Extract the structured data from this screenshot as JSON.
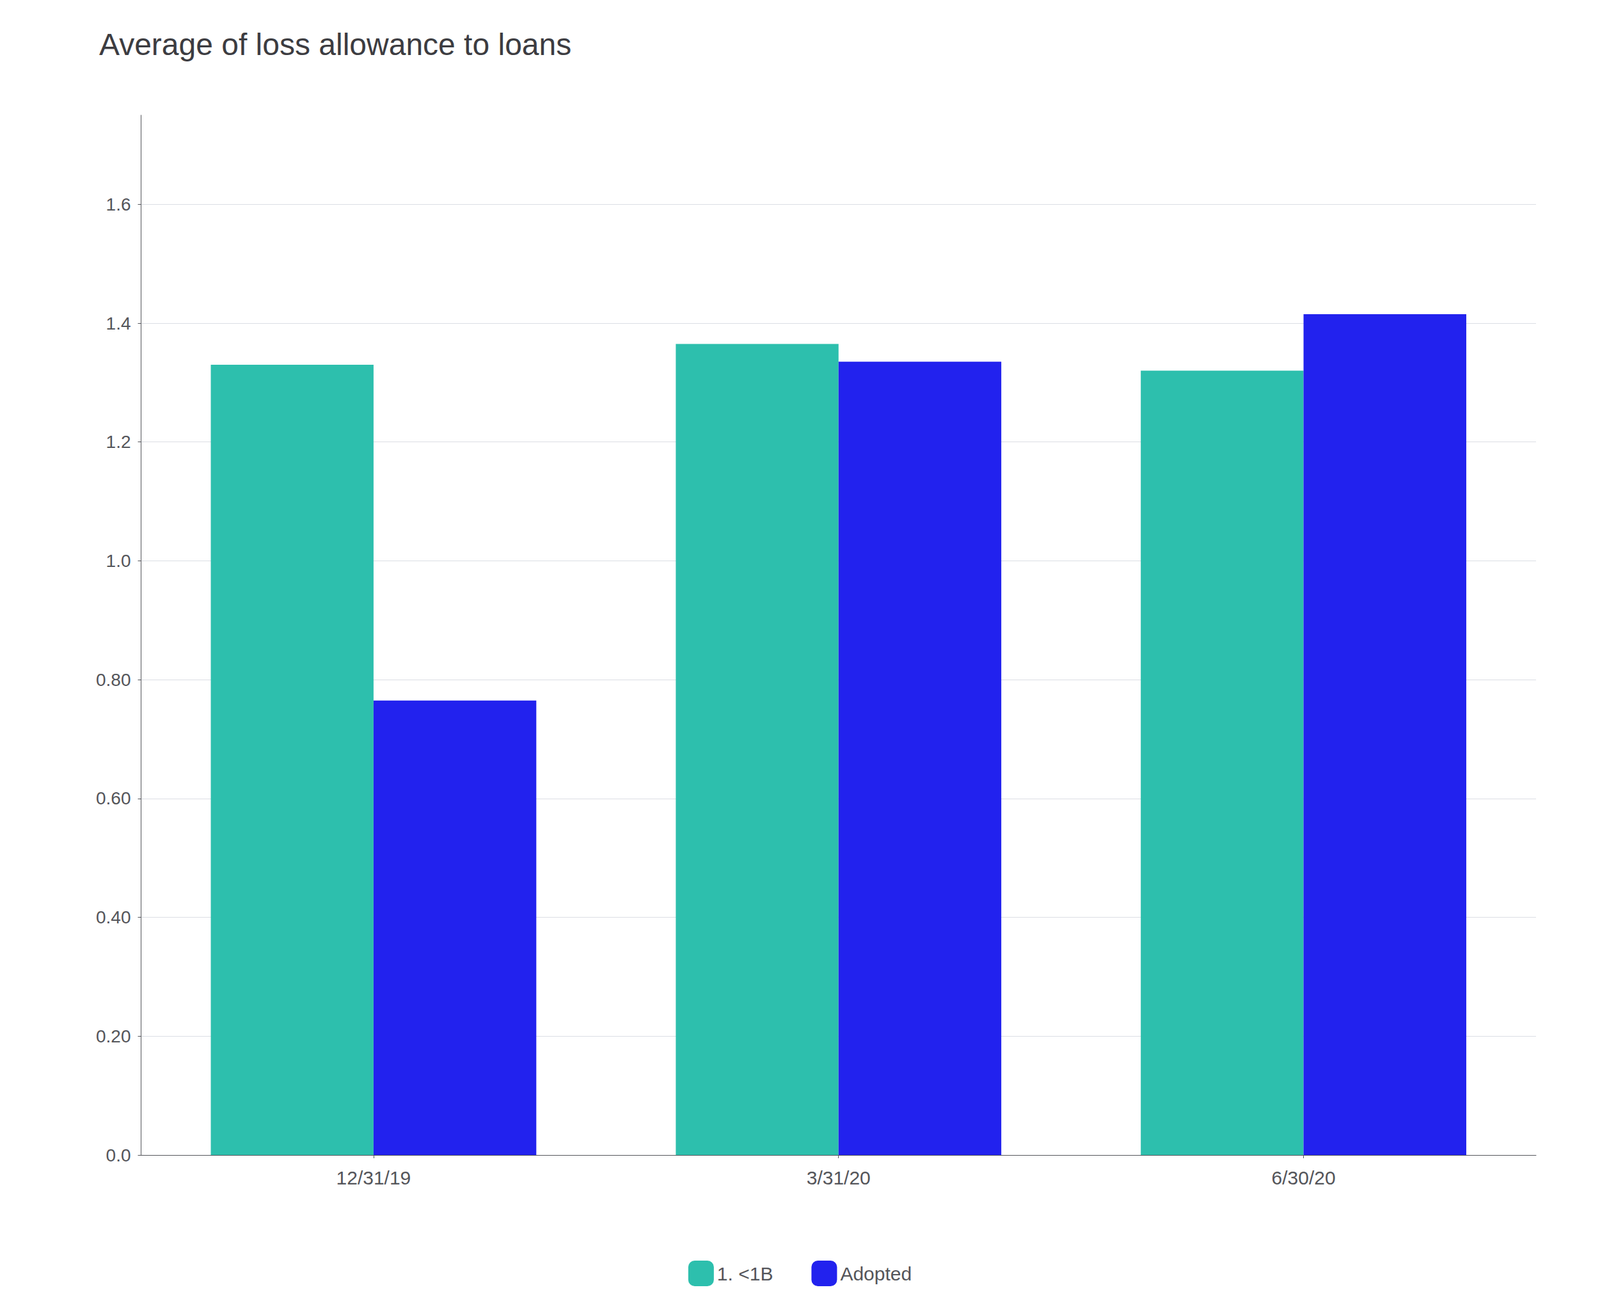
{
  "chart_data": {
    "type": "bar",
    "title": "Average of loss allowance to loans",
    "categories": [
      "12/31/19",
      "3/31/20",
      "6/30/20"
    ],
    "series": [
      {
        "name": "1. <1B",
        "color": "#2dbfad",
        "values": [
          1.33,
          1.365,
          1.32
        ]
      },
      {
        "name": "Adopted",
        "color": "#2222ee",
        "values": [
          0.765,
          1.335,
          1.415
        ]
      }
    ],
    "ylim": [
      0,
      1.75
    ],
    "yticks": [
      {
        "value": 0.0,
        "label": "0.0"
      },
      {
        "value": 0.2,
        "label": "0.20"
      },
      {
        "value": 0.4,
        "label": "0.40"
      },
      {
        "value": 0.6,
        "label": "0.60"
      },
      {
        "value": 0.8,
        "label": "0.80"
      },
      {
        "value": 1.0,
        "label": "1.0"
      },
      1.2,
      1.4,
      1.6
    ],
    "grid": true,
    "legend": "bottom"
  }
}
